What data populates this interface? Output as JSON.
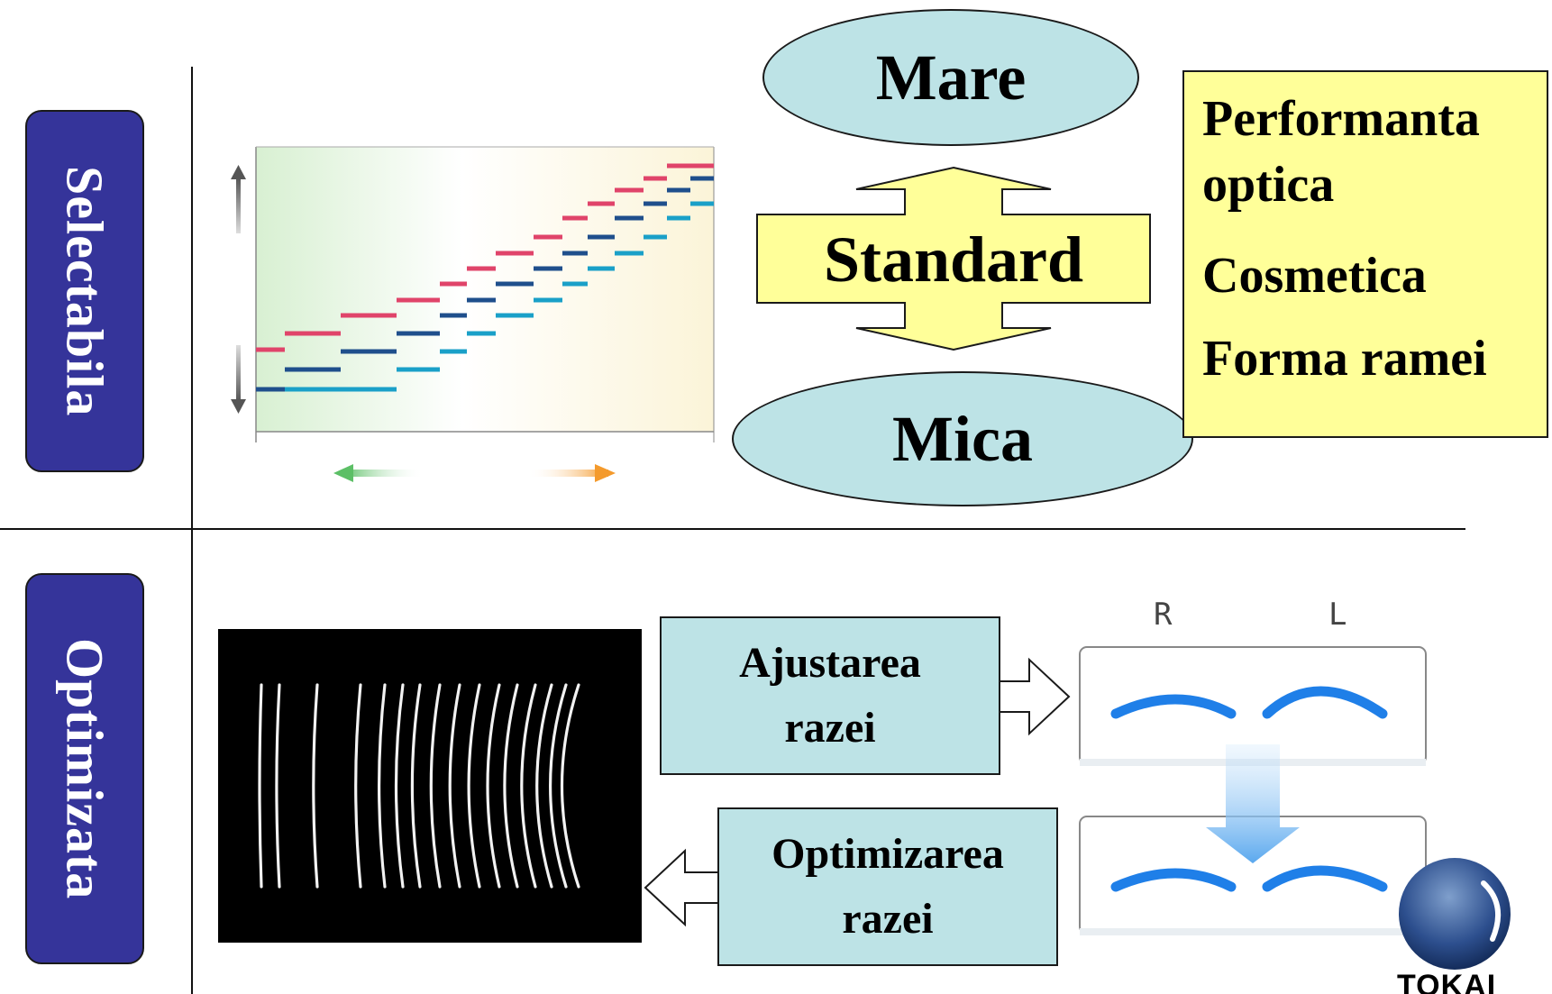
{
  "left_labels": {
    "top": "Selectabila",
    "bottom": "Optimizata"
  },
  "sizes": {
    "large": "Mare",
    "standard": "Standard",
    "small": "Mica"
  },
  "features": [
    "Performanta optica",
    "Cosmetica",
    "Forma ramei"
  ],
  "adjust_box": {
    "line1": "Ajustarea",
    "line2": "razei"
  },
  "optimize_box": {
    "line1": "Optimizarea",
    "line2": "razei"
  },
  "lens_labels": {
    "right": "R",
    "left": "L"
  },
  "brand": "TOKAI",
  "colors": {
    "label_bg": "#35349a",
    "ellipse_bg": "#bde3e6",
    "features_bg": "#ffff99",
    "arrow_bg": "#ffff99",
    "red_series": "#e0446a",
    "navy_series": "#1f4f8c",
    "cyan_series": "#1aa0c8",
    "lens_arc": "#1f7fe8"
  }
}
